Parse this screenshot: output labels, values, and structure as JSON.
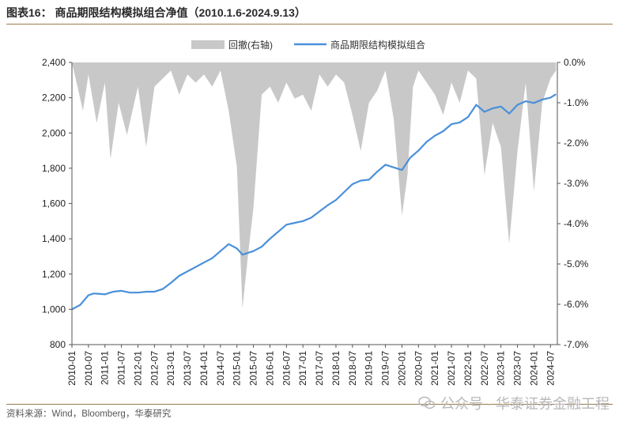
{
  "header": {
    "title": "图表16：  商品期限结构模拟组合净值（2010.1.6-2024.9.13）"
  },
  "footer": {
    "source": "资料来源：Wind，Bloomberg，华泰研究",
    "watermark": "公众号 · 华泰证券金融工程"
  },
  "colors": {
    "line": "#4a90d9",
    "area": "#c8c8c8",
    "rule": "#9a7b4f"
  },
  "chart_data": {
    "type": "line",
    "legend": [
      "回撤(右轴)",
      "商品期限结构模拟组合"
    ],
    "legend_position": "top",
    "grid": false,
    "x_ticks": [
      "2010-01",
      "2010-07",
      "2011-01",
      "2011-07",
      "2012-01",
      "2012-07",
      "2013-01",
      "2013-07",
      "2014-01",
      "2014-07",
      "2015-01",
      "2015-07",
      "2016-01",
      "2016-07",
      "2017-01",
      "2017-07",
      "2018-01",
      "2018-07",
      "2019-01",
      "2019-07",
      "2020-01",
      "2020-07",
      "2021-01",
      "2021-07",
      "2022-01",
      "2022-07",
      "2023-01",
      "2023-07",
      "2024-01",
      "2024-07"
    ],
    "y_left": {
      "ticks": [
        "800",
        "1,000",
        "1,200",
        "1,400",
        "1,600",
        "1,800",
        "2,000",
        "2,200",
        "2,400"
      ],
      "lim": [
        800,
        2400
      ]
    },
    "y_right": {
      "ticks": [
        "0.0%",
        "-1.0%",
        "-2.0%",
        "-3.0%",
        "-4.0%",
        "-5.0%",
        "-6.0%",
        "-7.0%"
      ],
      "lim": [
        -7.0,
        0.0
      ]
    },
    "series": [
      {
        "name": "商品期限结构模拟组合",
        "axis": "left",
        "type": "line",
        "points": [
          [
            "2010-01",
            1000
          ],
          [
            "2010-04",
            1025
          ],
          [
            "2010-07",
            1080
          ],
          [
            "2010-09",
            1090
          ],
          [
            "2011-01",
            1085
          ],
          [
            "2011-04",
            1100
          ],
          [
            "2011-07",
            1105
          ],
          [
            "2011-10",
            1095
          ],
          [
            "2012-01",
            1095
          ],
          [
            "2012-04",
            1100
          ],
          [
            "2012-07",
            1100
          ],
          [
            "2012-10",
            1115
          ],
          [
            "2013-01",
            1150
          ],
          [
            "2013-04",
            1190
          ],
          [
            "2013-07",
            1215
          ],
          [
            "2013-10",
            1240
          ],
          [
            "2014-01",
            1265
          ],
          [
            "2014-04",
            1290
          ],
          [
            "2014-07",
            1330
          ],
          [
            "2014-10",
            1370
          ],
          [
            "2015-01",
            1345
          ],
          [
            "2015-03",
            1310
          ],
          [
            "2015-07",
            1330
          ],
          [
            "2015-10",
            1355
          ],
          [
            "2016-01",
            1400
          ],
          [
            "2016-04",
            1440
          ],
          [
            "2016-07",
            1480
          ],
          [
            "2016-10",
            1490
          ],
          [
            "2017-01",
            1500
          ],
          [
            "2017-04",
            1520
          ],
          [
            "2017-07",
            1555
          ],
          [
            "2017-10",
            1590
          ],
          [
            "2018-01",
            1620
          ],
          [
            "2018-04",
            1665
          ],
          [
            "2018-07",
            1710
          ],
          [
            "2018-10",
            1730
          ],
          [
            "2019-01",
            1735
          ],
          [
            "2019-04",
            1780
          ],
          [
            "2019-07",
            1820
          ],
          [
            "2019-10",
            1805
          ],
          [
            "2020-01",
            1790
          ],
          [
            "2020-04",
            1860
          ],
          [
            "2020-07",
            1900
          ],
          [
            "2020-10",
            1950
          ],
          [
            "2021-01",
            1985
          ],
          [
            "2021-04",
            2010
          ],
          [
            "2021-07",
            2050
          ],
          [
            "2021-10",
            2060
          ],
          [
            "2022-01",
            2090
          ],
          [
            "2022-04",
            2160
          ],
          [
            "2022-07",
            2120
          ],
          [
            "2022-10",
            2140
          ],
          [
            "2023-01",
            2150
          ],
          [
            "2023-04",
            2110
          ],
          [
            "2023-07",
            2160
          ],
          [
            "2023-10",
            2180
          ],
          [
            "2024-01",
            2170
          ],
          [
            "2024-04",
            2190
          ],
          [
            "2024-07",
            2200
          ],
          [
            "2024-09",
            2220
          ]
        ]
      },
      {
        "name": "回撤(右轴)",
        "axis": "right",
        "type": "area",
        "points": [
          [
            "2010-01",
            0
          ],
          [
            "2010-03",
            -0.6
          ],
          [
            "2010-05",
            -1.2
          ],
          [
            "2010-07",
            -0.3
          ],
          [
            "2010-10",
            -1.5
          ],
          [
            "2011-01",
            -0.5
          ],
          [
            "2011-03",
            -2.4
          ],
          [
            "2011-06",
            -1.0
          ],
          [
            "2011-09",
            -1.8
          ],
          [
            "2012-01",
            -0.6
          ],
          [
            "2012-04",
            -2.1
          ],
          [
            "2012-07",
            -0.6
          ],
          [
            "2012-10",
            -0.4
          ],
          [
            "2013-01",
            -0.2
          ],
          [
            "2013-04",
            -0.8
          ],
          [
            "2013-07",
            -0.3
          ],
          [
            "2013-10",
            -0.5
          ],
          [
            "2014-01",
            -0.3
          ],
          [
            "2014-04",
            -0.6
          ],
          [
            "2014-07",
            -0.2
          ],
          [
            "2014-10",
            -1.2
          ],
          [
            "2015-01",
            -2.6
          ],
          [
            "2015-03",
            -6.1
          ],
          [
            "2015-05",
            -4.8
          ],
          [
            "2015-07",
            -3.6
          ],
          [
            "2015-10",
            -0.8
          ],
          [
            "2016-01",
            -0.6
          ],
          [
            "2016-04",
            -1.0
          ],
          [
            "2016-07",
            -0.5
          ],
          [
            "2016-10",
            -0.9
          ],
          [
            "2017-01",
            -0.8
          ],
          [
            "2017-04",
            -1.2
          ],
          [
            "2017-07",
            -0.3
          ],
          [
            "2017-10",
            -0.6
          ],
          [
            "2018-01",
            -0.3
          ],
          [
            "2018-04",
            -0.5
          ],
          [
            "2018-07",
            -1.3
          ],
          [
            "2018-10",
            -2.2
          ],
          [
            "2019-01",
            -1.0
          ],
          [
            "2019-04",
            -0.7
          ],
          [
            "2019-07",
            -0.2
          ],
          [
            "2019-10",
            -1.4
          ],
          [
            "2020-01",
            -3.8
          ],
          [
            "2020-03",
            -2.8
          ],
          [
            "2020-05",
            -0.6
          ],
          [
            "2020-07",
            -0.2
          ],
          [
            "2020-10",
            -0.5
          ],
          [
            "2021-01",
            -0.8
          ],
          [
            "2021-04",
            -1.3
          ],
          [
            "2021-07",
            -0.5
          ],
          [
            "2021-10",
            -1.0
          ],
          [
            "2022-01",
            -0.2
          ],
          [
            "2022-04",
            -0.4
          ],
          [
            "2022-07",
            -2.8
          ],
          [
            "2022-10",
            -1.5
          ],
          [
            "2023-01",
            -2.1
          ],
          [
            "2023-04",
            -4.5
          ],
          [
            "2023-07",
            -2.2
          ],
          [
            "2023-10",
            -0.5
          ],
          [
            "2024-01",
            -3.2
          ],
          [
            "2024-04",
            -1.0
          ],
          [
            "2024-07",
            -0.4
          ],
          [
            "2024-09",
            -0.2
          ]
        ]
      }
    ]
  }
}
